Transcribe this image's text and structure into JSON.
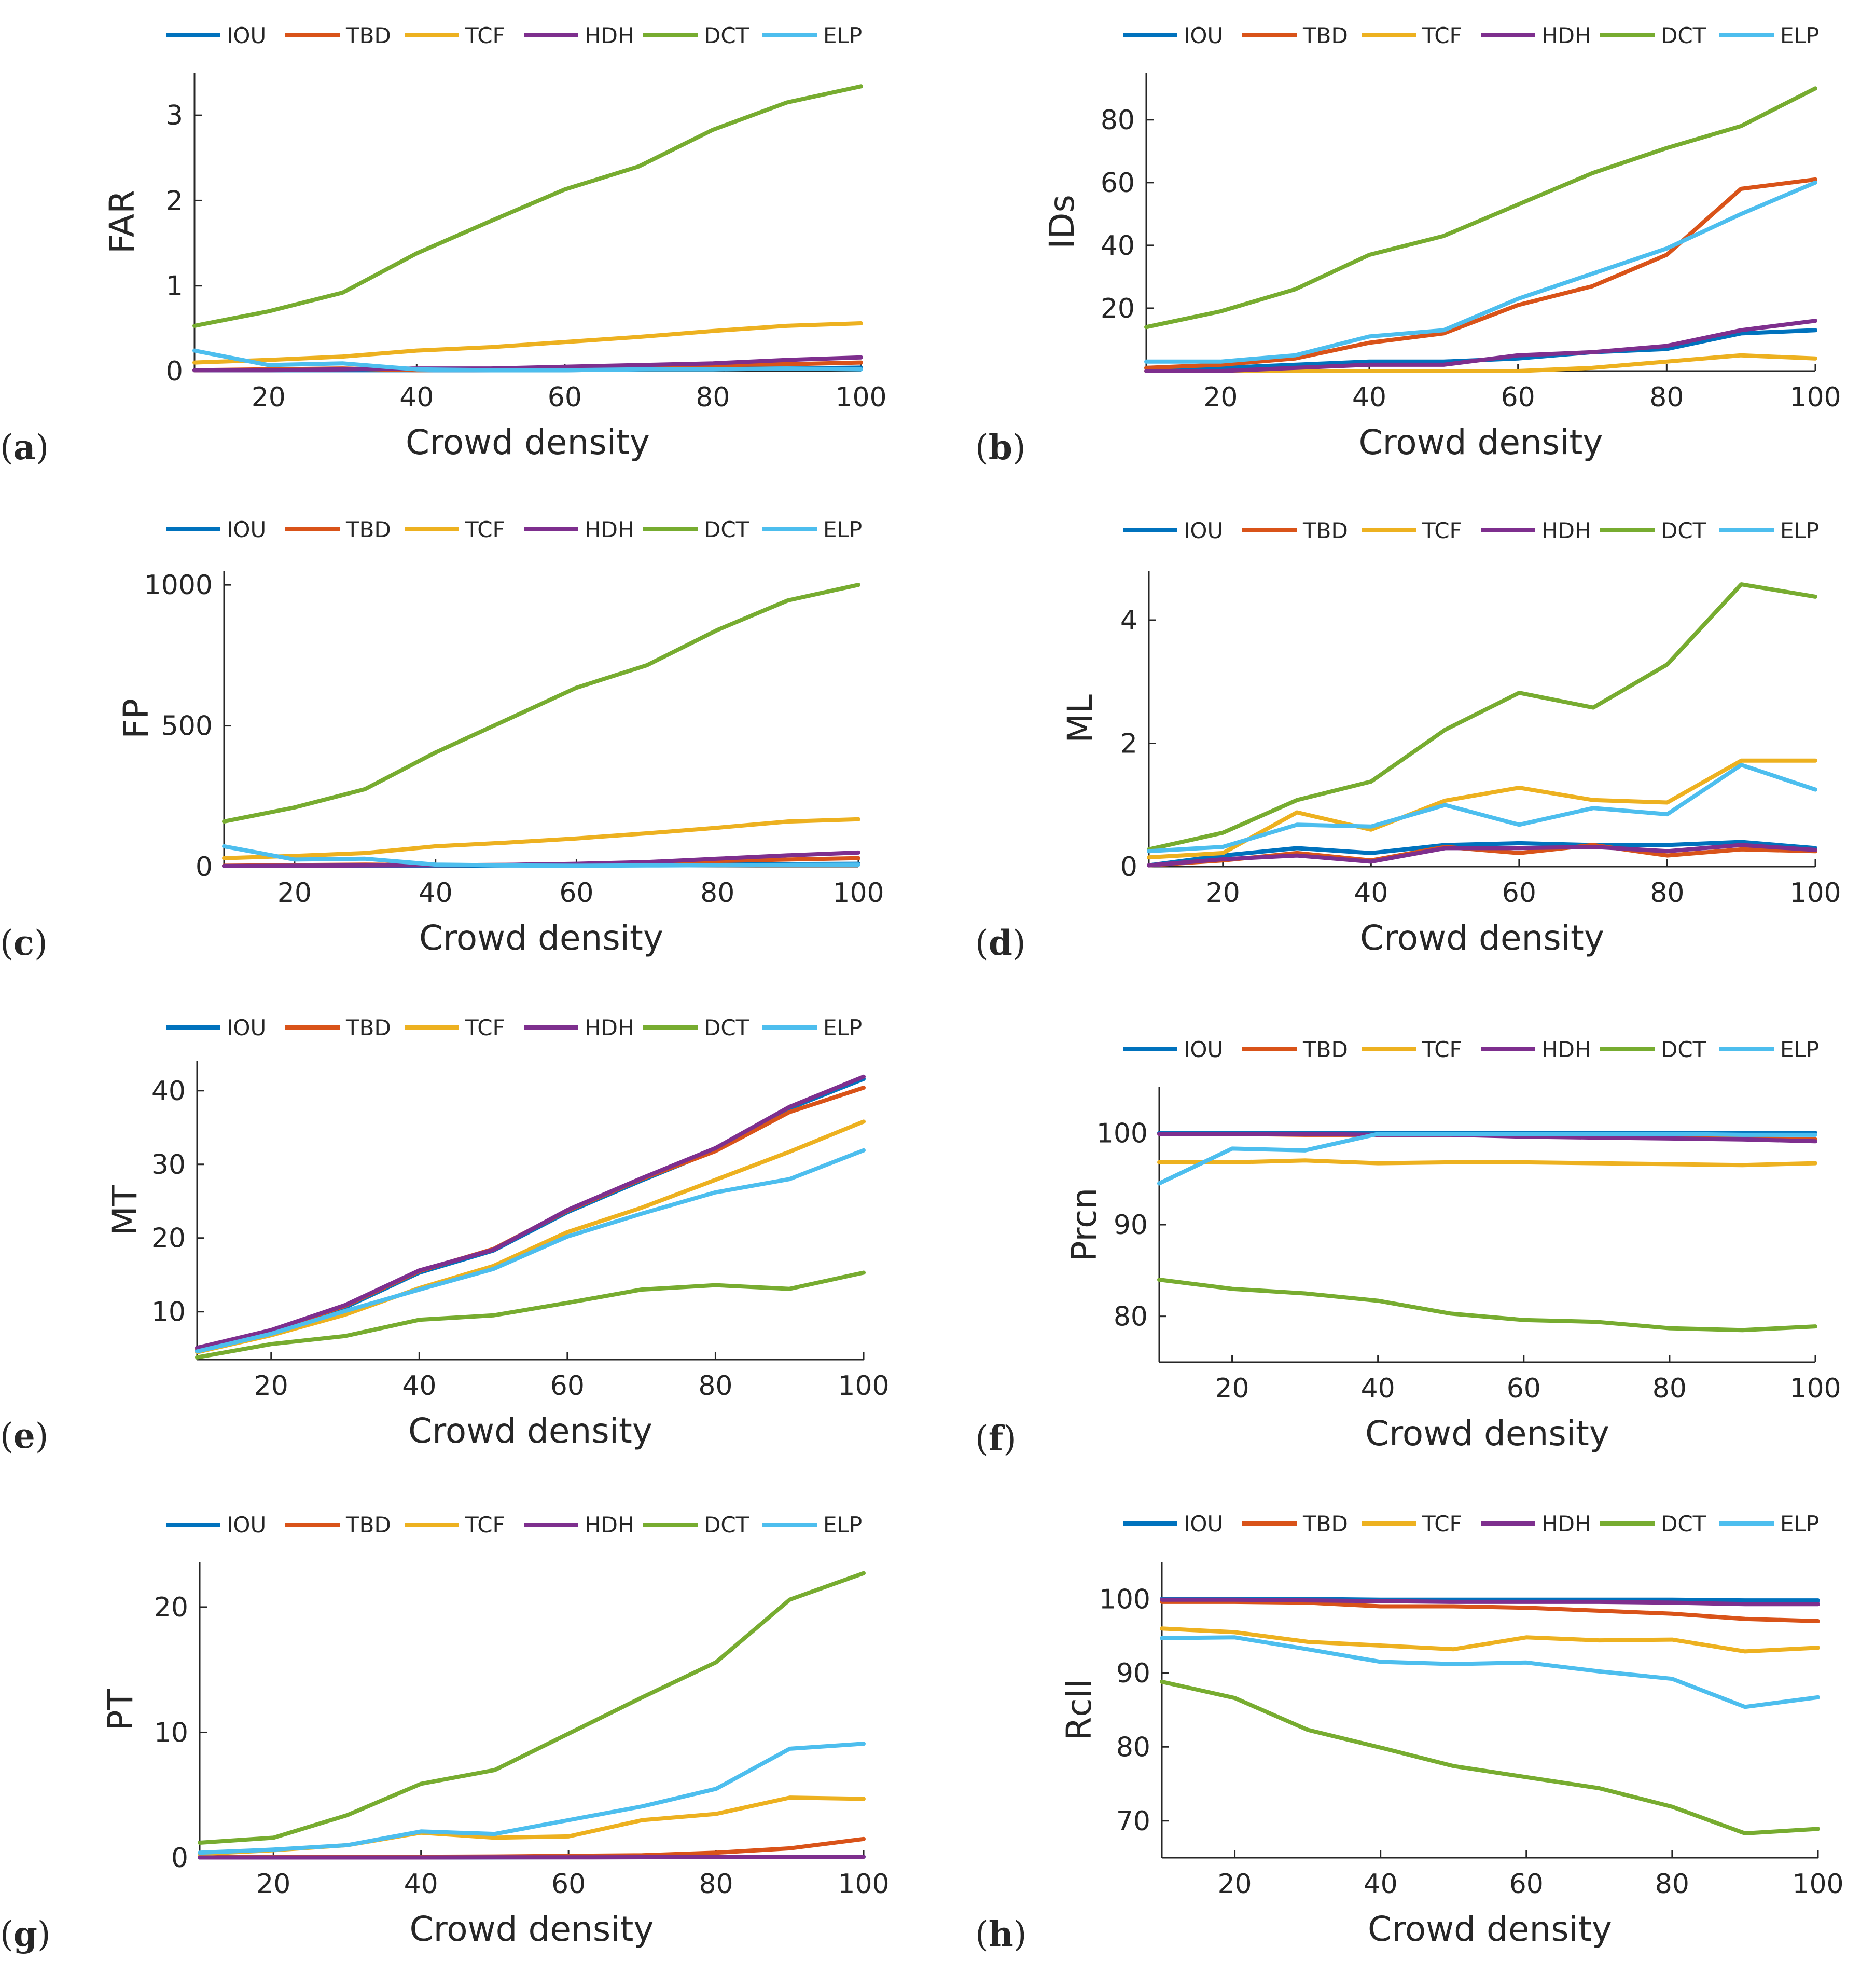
{
  "colors": {
    "IOU": "#0072BD",
    "TBD": "#D95319",
    "TCF": "#EDB120",
    "HDH": "#7E2F8E",
    "DCT": "#77AC30",
    "ELP": "#4DBEEE"
  },
  "chart_data": [
    {
      "id": "a",
      "panel_label": "a",
      "type": "line",
      "xlabel": "Crowd density",
      "ylabel": "FAR",
      "legend": [
        "IOU",
        "TBD",
        "TCF",
        "HDH",
        "DCT",
        "ELP"
      ],
      "xlim": [
        10,
        100
      ],
      "ylim": [
        0,
        3.5
      ],
      "xticks": [
        20,
        40,
        60,
        80,
        100
      ],
      "yticks": [
        0,
        1,
        2,
        3
      ],
      "x": [
        10,
        20,
        30,
        40,
        50,
        60,
        70,
        80,
        90,
        100
      ],
      "series": [
        {
          "name": "IOU",
          "values": [
            0.01,
            0.01,
            0.01,
            0.01,
            0.01,
            0.01,
            0.02,
            0.03,
            0.03,
            0.04
          ]
        },
        {
          "name": "TBD",
          "values": [
            0.01,
            0.02,
            0.03,
            0.01,
            0.02,
            0.03,
            0.05,
            0.07,
            0.08,
            0.1
          ]
        },
        {
          "name": "TCF",
          "values": [
            0.1,
            0.13,
            0.17,
            0.24,
            0.28,
            0.34,
            0.4,
            0.47,
            0.53,
            0.56
          ]
        },
        {
          "name": "HDH",
          "values": [
            0.01,
            0.01,
            0.02,
            0.03,
            0.03,
            0.05,
            0.07,
            0.09,
            0.13,
            0.16
          ]
        },
        {
          "name": "DCT",
          "values": [
            0.53,
            0.7,
            0.92,
            1.38,
            1.76,
            2.13,
            2.4,
            2.83,
            3.15,
            3.34
          ]
        },
        {
          "name": "ELP",
          "values": [
            0.24,
            0.07,
            0.09,
            0.02,
            0.01,
            0.01,
            0.02,
            0.02,
            0.03,
            0.02
          ]
        }
      ]
    },
    {
      "id": "b",
      "panel_label": "b",
      "type": "line",
      "xlabel": "Crowd density",
      "ylabel": "IDs",
      "legend": [
        "IOU",
        "TBD",
        "TCF",
        "HDH",
        "DCT",
        "ELP"
      ],
      "xlim": [
        10,
        100
      ],
      "ylim": [
        0,
        95
      ],
      "xticks": [
        20,
        40,
        60,
        80,
        100
      ],
      "yticks": [
        20,
        40,
        60,
        80
      ],
      "x": [
        10,
        20,
        30,
        40,
        50,
        60,
        70,
        80,
        90,
        100
      ],
      "series": [
        {
          "name": "IOU",
          "values": [
            1,
            1,
            2,
            3,
            3,
            4,
            6,
            7,
            12,
            13
          ]
        },
        {
          "name": "TBD",
          "values": [
            1,
            2,
            4,
            9,
            12,
            21,
            27,
            37,
            58,
            61
          ]
        },
        {
          "name": "TCF",
          "values": [
            0,
            0,
            0,
            0,
            0,
            0,
            1,
            3,
            5,
            4
          ]
        },
        {
          "name": "HDH",
          "values": [
            0,
            0,
            1,
            2,
            2,
            5,
            6,
            8,
            13,
            16
          ]
        },
        {
          "name": "DCT",
          "values": [
            14,
            19,
            26,
            37,
            43,
            53,
            63,
            71,
            78,
            90
          ]
        },
        {
          "name": "ELP",
          "values": [
            3,
            3,
            5,
            11,
            13,
            23,
            31,
            39,
            50,
            60
          ]
        }
      ]
    },
    {
      "id": "c",
      "panel_label": "c",
      "type": "line",
      "xlabel": "Crowd density",
      "ylabel": "FP",
      "legend": [
        "IOU",
        "TBD",
        "TCF",
        "HDH",
        "DCT",
        "ELP"
      ],
      "xlim": [
        10,
        100
      ],
      "ylim": [
        0,
        1050
      ],
      "xticks": [
        20,
        40,
        60,
        80,
        100
      ],
      "yticks": [
        0,
        500,
        1000
      ],
      "x": [
        10,
        20,
        30,
        40,
        50,
        60,
        70,
        80,
        90,
        100
      ],
      "series": [
        {
          "name": "IOU",
          "values": [
            2,
            2,
            3,
            3,
            4,
            5,
            6,
            8,
            9,
            10
          ]
        },
        {
          "name": "TBD",
          "values": [
            3,
            5,
            7,
            5,
            6,
            9,
            14,
            20,
            25,
            30
          ]
        },
        {
          "name": "TCF",
          "values": [
            30,
            38,
            48,
            72,
            85,
            100,
            118,
            138,
            160,
            168
          ]
        },
        {
          "name": "HDH",
          "values": [
            2,
            3,
            4,
            5,
            6,
            10,
            16,
            28,
            40,
            50
          ]
        },
        {
          "name": "DCT",
          "values": [
            160,
            210,
            275,
            405,
            520,
            635,
            715,
            840,
            945,
            1000
          ]
        },
        {
          "name": "ELP",
          "values": [
            72,
            25,
            28,
            7,
            4,
            3,
            4,
            5,
            6,
            7
          ]
        }
      ]
    },
    {
      "id": "d",
      "panel_label": "d",
      "type": "line",
      "xlabel": "Crowd density",
      "ylabel": "ML",
      "legend": [
        "IOU",
        "TBD",
        "TCF",
        "HDH",
        "DCT",
        "ELP"
      ],
      "xlim": [
        10,
        100
      ],
      "ylim": [
        0,
        4.8
      ],
      "xticks": [
        20,
        40,
        60,
        80,
        100
      ],
      "yticks": [
        0,
        2,
        4
      ],
      "x": [
        10,
        20,
        30,
        40,
        50,
        60,
        70,
        80,
        90,
        100
      ],
      "series": [
        {
          "name": "IOU",
          "values": [
            0.02,
            0.18,
            0.3,
            0.22,
            0.35,
            0.38,
            0.35,
            0.35,
            0.4,
            0.3
          ]
        },
        {
          "name": "TBD",
          "values": [
            0.02,
            0.1,
            0.22,
            0.1,
            0.32,
            0.22,
            0.35,
            0.18,
            0.28,
            0.25
          ]
        },
        {
          "name": "TCF",
          "values": [
            0.15,
            0.22,
            0.88,
            0.6,
            1.07,
            1.28,
            1.08,
            1.04,
            1.72,
            1.72
          ]
        },
        {
          "name": "HDH",
          "values": [
            0.02,
            0.12,
            0.18,
            0.08,
            0.3,
            0.3,
            0.32,
            0.25,
            0.35,
            0.27
          ]
        },
        {
          "name": "DCT",
          "values": [
            0.28,
            0.55,
            1.08,
            1.38,
            2.22,
            2.82,
            2.58,
            3.28,
            4.58,
            4.38
          ]
        },
        {
          "name": "ELP",
          "values": [
            0.25,
            0.32,
            0.68,
            0.65,
            1.0,
            0.68,
            0.95,
            0.85,
            1.65,
            1.25
          ]
        }
      ]
    },
    {
      "id": "e",
      "panel_label": "e",
      "type": "line",
      "xlabel": "Crowd density",
      "ylabel": "MT",
      "legend": [
        "IOU",
        "TBD",
        "TCF",
        "HDH",
        "DCT",
        "ELP"
      ],
      "xlim": [
        10,
        100
      ],
      "ylim": [
        3.5,
        44
      ],
      "xticks": [
        20,
        40,
        60,
        80,
        100
      ],
      "yticks": [
        10,
        20,
        30,
        40
      ],
      "x": [
        10,
        20,
        30,
        40,
        50,
        60,
        70,
        80,
        90,
        100
      ],
      "series": [
        {
          "name": "IOU",
          "values": [
            4.8,
            7.2,
            10.6,
            15.3,
            18.3,
            23.5,
            27.8,
            31.9,
            37.6,
            41.6
          ]
        },
        {
          "name": "TBD",
          "values": [
            5.0,
            7.4,
            10.8,
            15.5,
            18.5,
            23.7,
            28.0,
            31.8,
            37.1,
            40.4
          ]
        },
        {
          "name": "TCF",
          "values": [
            4.5,
            6.8,
            9.6,
            13.2,
            16.2,
            20.8,
            24.1,
            27.9,
            31.7,
            35.8
          ]
        },
        {
          "name": "HDH",
          "values": [
            5.1,
            7.5,
            10.9,
            15.6,
            18.4,
            23.8,
            28.1,
            32.2,
            37.8,
            41.9
          ]
        },
        {
          "name": "DCT",
          "values": [
            3.8,
            5.6,
            6.7,
            8.9,
            9.5,
            11.2,
            13.0,
            13.6,
            13.1,
            15.3
          ]
        },
        {
          "name": "ELP",
          "values": [
            4.6,
            7.0,
            10.1,
            13.0,
            15.8,
            20.2,
            23.3,
            26.2,
            28.0,
            31.9
          ]
        }
      ]
    },
    {
      "id": "f",
      "panel_label": "f",
      "type": "line",
      "xlabel": "Crowd density",
      "ylabel": "Prcn",
      "legend": [
        "IOU",
        "TBD",
        "TCF",
        "HDH",
        "DCT",
        "ELP"
      ],
      "xlim": [
        10,
        100
      ],
      "ylim": [
        75,
        105
      ],
      "xticks": [
        20,
        40,
        60,
        80,
        100
      ],
      "yticks": [
        80,
        90,
        100
      ],
      "x": [
        10,
        20,
        30,
        40,
        50,
        60,
        70,
        80,
        90,
        100
      ],
      "series": [
        {
          "name": "IOU",
          "values": [
            100,
            100,
            100,
            100,
            100,
            100,
            100,
            100,
            100,
            100
          ]
        },
        {
          "name": "TBD",
          "values": [
            99.9,
            99.9,
            99.8,
            99.8,
            99.8,
            99.7,
            99.6,
            99.5,
            99.4,
            99.3
          ]
        },
        {
          "name": "TCF",
          "values": [
            96.8,
            96.8,
            97.0,
            96.7,
            96.8,
            96.8,
            96.7,
            96.6,
            96.5,
            96.7
          ]
        },
        {
          "name": "HDH",
          "values": [
            99.9,
            99.9,
            99.9,
            99.8,
            99.8,
            99.6,
            99.5,
            99.4,
            99.3,
            99.1
          ]
        },
        {
          "name": "DCT",
          "values": [
            84.0,
            83.0,
            82.5,
            81.7,
            80.3,
            79.6,
            79.4,
            78.7,
            78.5,
            78.9
          ]
        },
        {
          "name": "ELP",
          "values": [
            94.5,
            98.3,
            98.1,
            99.9,
            99.9,
            99.9,
            99.9,
            99.9,
            99.8,
            99.8
          ]
        }
      ]
    },
    {
      "id": "g",
      "panel_label": "g",
      "type": "line",
      "xlabel": "Crowd density",
      "ylabel": "PT",
      "legend": [
        "IOU",
        "TBD",
        "TCF",
        "HDH",
        "DCT",
        "ELP"
      ],
      "xlim": [
        10,
        100
      ],
      "ylim": [
        0,
        23.6
      ],
      "xticks": [
        20,
        40,
        60,
        80,
        100
      ],
      "yticks": [
        0,
        10,
        20
      ],
      "x": [
        10,
        20,
        30,
        40,
        50,
        60,
        70,
        80,
        90,
        100
      ],
      "series": [
        {
          "name": "IOU",
          "values": [
            0.02,
            0.02,
            0.02,
            0.02,
            0.03,
            0.04,
            0.05,
            0.06,
            0.07,
            0.08
          ]
        },
        {
          "name": "TBD",
          "values": [
            0.05,
            0.05,
            0.05,
            0.08,
            0.1,
            0.15,
            0.2,
            0.4,
            0.75,
            1.5
          ]
        },
        {
          "name": "TCF",
          "values": [
            0.3,
            0.6,
            1.0,
            2.0,
            1.6,
            1.7,
            3.0,
            3.5,
            4.8,
            4.7
          ]
        },
        {
          "name": "HDH",
          "values": [
            0.02,
            0.02,
            0.02,
            0.02,
            0.03,
            0.03,
            0.04,
            0.05,
            0.06,
            0.08
          ]
        },
        {
          "name": "DCT",
          "values": [
            1.2,
            1.6,
            3.4,
            5.9,
            7.0,
            9.9,
            12.8,
            15.6,
            20.6,
            22.7
          ]
        },
        {
          "name": "ELP",
          "values": [
            0.4,
            0.65,
            1.0,
            2.1,
            1.9,
            3.0,
            4.1,
            5.5,
            8.7,
            9.1
          ]
        }
      ]
    },
    {
      "id": "h",
      "panel_label": "h",
      "type": "line",
      "xlabel": "Crowd density",
      "ylabel": "Rcll",
      "legend": [
        "IOU",
        "TBD",
        "TCF",
        "HDH",
        "DCT",
        "ELP"
      ],
      "xlim": [
        10,
        100
      ],
      "ylim": [
        65,
        105
      ],
      "xticks": [
        20,
        40,
        60,
        80,
        100
      ],
      "yticks": [
        70,
        80,
        90,
        100
      ],
      "x": [
        10,
        20,
        30,
        40,
        50,
        60,
        70,
        80,
        90,
        100
      ],
      "series": [
        {
          "name": "IOU",
          "values": [
            100,
            100,
            100,
            99.9,
            99.9,
            99.9,
            99.9,
            99.9,
            99.8,
            99.8
          ]
        },
        {
          "name": "TBD",
          "values": [
            99.6,
            99.6,
            99.5,
            99.0,
            99.0,
            98.8,
            98.4,
            98.0,
            97.3,
            97.0
          ]
        },
        {
          "name": "TCF",
          "values": [
            96.0,
            95.5,
            94.2,
            93.7,
            93.2,
            94.8,
            94.4,
            94.5,
            92.9,
            93.4
          ]
        },
        {
          "name": "HDH",
          "values": [
            99.9,
            99.9,
            99.8,
            99.7,
            99.6,
            99.6,
            99.6,
            99.5,
            99.3,
            99.3
          ]
        },
        {
          "name": "DCT",
          "values": [
            88.8,
            86.6,
            82.3,
            79.9,
            77.4,
            75.9,
            74.4,
            71.9,
            68.3,
            68.9
          ]
        },
        {
          "name": "ELP",
          "values": [
            94.7,
            94.8,
            93.2,
            91.5,
            91.2,
            91.4,
            90.2,
            89.2,
            85.4,
            86.7
          ]
        }
      ]
    }
  ]
}
